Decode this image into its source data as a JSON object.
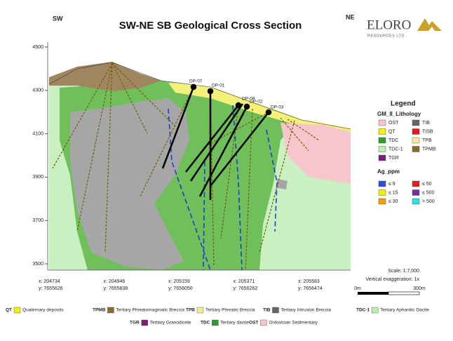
{
  "header": {
    "title": "SW-NE SB Geological Cross Section",
    "left_direction": "SW",
    "right_direction": "NE",
    "logo": {
      "name": "ELORO",
      "subtitle": "RESOURCES LTD."
    }
  },
  "elevation_ticks": [
    "4500",
    "4300",
    "4100",
    "3900",
    "3700",
    "3500"
  ],
  "coordinates": [
    {
      "x": "x: 204734",
      "y": "y: 7655626"
    },
    {
      "x": "x: 204946",
      "y": "y: 7655838"
    },
    {
      "x": "x: 205159",
      "y": "y: 7656050"
    },
    {
      "x": "x: 205371",
      "y": "y: 7656262"
    },
    {
      "x": "x: 205583",
      "y": "y: 7656474"
    }
  ],
  "drillholes": [
    "DP-07",
    "DP-01",
    "DP-09",
    "DP-02",
    "DP-03"
  ],
  "legend": {
    "title": "Legend",
    "lithology_title": "GM_II_Lithology",
    "lithology": [
      {
        "label": "OST",
        "color": "#f6c6cc"
      },
      {
        "label": "TIB",
        "color": "#666666"
      },
      {
        "label": "QT",
        "color": "#f5f000"
      },
      {
        "label": "TISB",
        "color": "#e31a1c"
      },
      {
        "label": "TDC",
        "color": "#2e9c2e"
      },
      {
        "label": "TPB",
        "color": "#f3eb9a"
      },
      {
        "label": "TDC-1",
        "color": "#b9f0b0"
      },
      {
        "label": "TPMB",
        "color": "#8c6b2e"
      },
      {
        "label": "TGR",
        "color": "#7b1f7b"
      }
    ],
    "grade_title": "Ag_ppm",
    "grades": [
      {
        "label": "≤ 9",
        "color": "#2b4fd8"
      },
      {
        "label": "≤ 50",
        "color": "#e02020"
      },
      {
        "label": "≤ 15",
        "color": "#f0f000"
      },
      {
        "label": "≤ 500",
        "color": "#7030a0"
      },
      {
        "label": "≤ 30",
        "color": "#f0a000"
      },
      {
        "label": "> 500",
        "color": "#30e0e0"
      }
    ]
  },
  "scale": {
    "ratio": "Scale: 1:7,000",
    "exaggeration": "Vertical exaggeration: 1x",
    "start": "0m",
    "end": "300m"
  },
  "units": [
    {
      "code": "QT",
      "name": "Quaternary deposits",
      "color": "#f5f000"
    },
    {
      "code": "TPMB",
      "name": "Tertiary Phreatomagmatic Breccia",
      "color": "#8c6b2e"
    },
    {
      "code": "TPB",
      "name": "Tertiary Phreatic Breccia",
      "color": "#f3eb9a"
    },
    {
      "code": "TIB",
      "name": "Tertiary Intrusion Breccia",
      "color": "#666666"
    },
    {
      "code": "TDC-1",
      "name": "Tertiary Aphanitic Dacite",
      "color": "#b9f0b0"
    },
    {
      "code": "TGR",
      "name": "Tertiary Granodiorite",
      "color": "#7b1f7b"
    },
    {
      "code": "TDC",
      "name": "Tertiary dacite",
      "color": "#2e9c2e"
    },
    {
      "code": "OST",
      "name": "Ordovician Sedimentary",
      "color": "#f6c6cc"
    }
  ]
}
